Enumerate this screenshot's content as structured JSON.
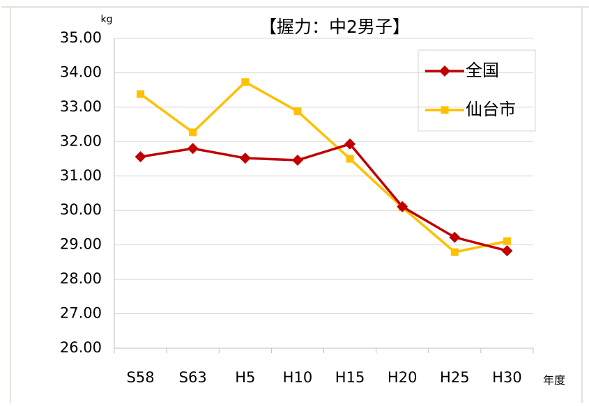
{
  "chart_data": {
    "type": "line",
    "title": "【握力：中2男子】",
    "y_label": "kg",
    "x_label": "年度",
    "categories": [
      "S58",
      "S63",
      "H5",
      "H10",
      "H15",
      "H20",
      "H25",
      "H30"
    ],
    "series": [
      {
        "name": "全国",
        "color": "#c00000",
        "marker": "diamond",
        "values": [
          31.56,
          31.8,
          31.52,
          31.46,
          31.93,
          30.11,
          29.22,
          28.83
        ]
      },
      {
        "name": "仙台市",
        "color": "#ffc000",
        "marker": "square",
        "values": [
          33.38,
          32.27,
          33.73,
          32.88,
          31.5,
          30.09,
          28.79,
          29.11
        ]
      }
    ],
    "ylim": [
      26,
      35
    ],
    "yticks": [
      {
        "value": 26,
        "label": "26.00"
      },
      {
        "value": 27,
        "label": "27.00"
      },
      {
        "value": 28,
        "label": "28.00"
      },
      {
        "value": 29,
        "label": "29.00"
      },
      {
        "value": 30,
        "label": "30.00"
      },
      {
        "value": 31,
        "label": "31.00"
      },
      {
        "value": 32,
        "label": "32.00"
      },
      {
        "value": 33,
        "label": "33.00"
      },
      {
        "value": 34,
        "label": "34.00"
      },
      {
        "value": 35,
        "label": "35.00"
      }
    ],
    "grid": true,
    "legend": "top-right"
  }
}
